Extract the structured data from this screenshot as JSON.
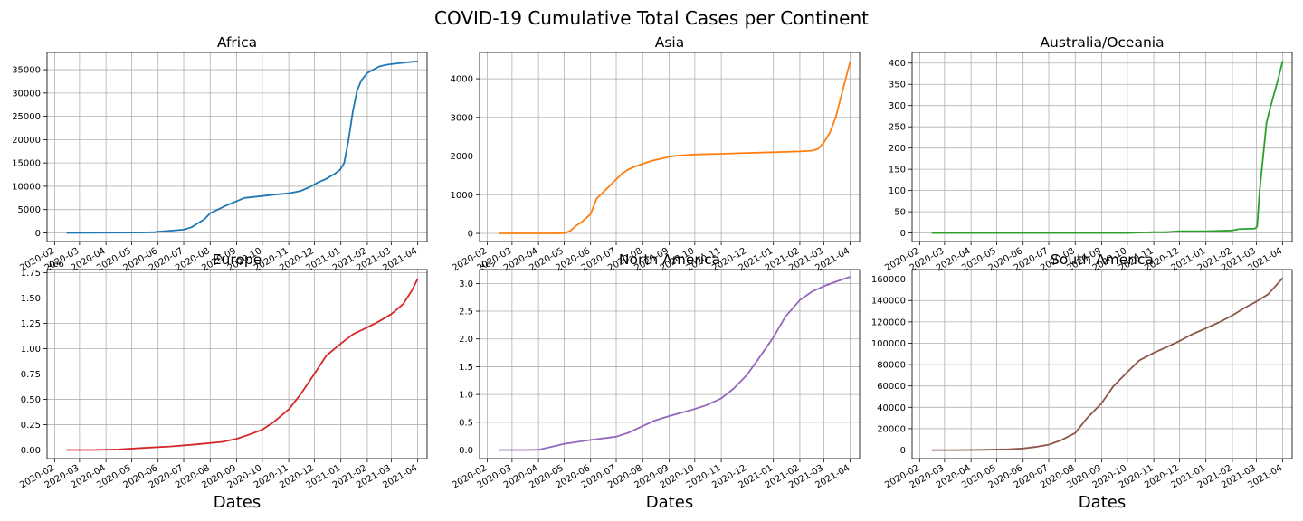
{
  "figure": {
    "suptitle": "COVID-19 Cumulative Total Cases per Continent"
  },
  "chart_data": [
    {
      "type": "line",
      "title": "Africa",
      "xlabel": "",
      "color": "#1f77b4",
      "grid": true,
      "x_ticks": [
        "2020-02",
        "2020-03",
        "2020-04",
        "2020-05",
        "2020-06",
        "2020-07",
        "2020-08",
        "2020-09",
        "2020-10",
        "2020-11",
        "2020-12",
        "2021-01",
        "2021-02",
        "2021-03",
        "2021-04"
      ],
      "ylim": [
        -1850,
        38700
      ],
      "y_ticks": [
        0,
        5000,
        10000,
        15000,
        20000,
        25000,
        30000,
        35000
      ],
      "y_tick_labels": [
        "0",
        "5000",
        "10000",
        "15000",
        "20000",
        "25000",
        "30000",
        "35000"
      ],
      "offset_text": "",
      "x": [
        "2020-02-15",
        "2020-03-15",
        "2020-04-15",
        "2020-05-15",
        "2020-05-28",
        "2020-06-01",
        "2020-06-15",
        "2020-07-01",
        "2020-07-10",
        "2020-07-25",
        "2020-08-01",
        "2020-08-10",
        "2020-08-20",
        "2020-09-01",
        "2020-09-10",
        "2020-09-20",
        "2020-10-01",
        "2020-10-15",
        "2020-11-01",
        "2020-11-15",
        "2020-11-25",
        "2020-12-05",
        "2020-12-15",
        "2020-12-25",
        "2020-12-31",
        "2021-01-05",
        "2021-01-10",
        "2021-01-15",
        "2021-01-20",
        "2021-01-25",
        "2021-02-01",
        "2021-02-08",
        "2021-02-15",
        "2021-02-22",
        "2021-03-01",
        "2021-03-10",
        "2021-03-20",
        "2021-04-01"
      ],
      "values": [
        0,
        20,
        50,
        90,
        150,
        250,
        450,
        700,
        1200,
        2900,
        4200,
        5000,
        5900,
        6800,
        7500,
        7700,
        7900,
        8200,
        8500,
        9000,
        9800,
        10800,
        11600,
        12700,
        13500,
        15000,
        20000,
        26000,
        30500,
        32700,
        34300,
        35000,
        35700,
        36000,
        36200,
        36400,
        36600,
        36800
      ]
    },
    {
      "type": "line",
      "title": "Asia",
      "xlabel": "",
      "color": "#ff7f0e",
      "grid": true,
      "x_ticks": [
        "2020-02",
        "2020-03",
        "2020-04",
        "2020-05",
        "2020-06",
        "2020-07",
        "2020-08",
        "2020-09",
        "2020-10",
        "2020-11",
        "2020-12",
        "2021-01",
        "2021-02",
        "2021-03",
        "2021-04"
      ],
      "ylim": [
        -210,
        4680
      ],
      "y_ticks": [
        0,
        1000,
        2000,
        3000,
        4000
      ],
      "y_tick_labels": [
        "0",
        "1000",
        "2000",
        "3000",
        "4000"
      ],
      "offset_text": "",
      "x": [
        "2020-02-15",
        "2020-03-15",
        "2020-04-15",
        "2020-05-01",
        "2020-05-08",
        "2020-05-15",
        "2020-05-22",
        "2020-06-01",
        "2020-06-08",
        "2020-06-15",
        "2020-06-22",
        "2020-07-01",
        "2020-07-08",
        "2020-07-15",
        "2020-07-22",
        "2020-08-01",
        "2020-08-10",
        "2020-08-20",
        "2020-09-01",
        "2020-09-10",
        "2020-10-01",
        "2020-11-01",
        "2020-12-01",
        "2021-01-01",
        "2021-02-01",
        "2021-02-15",
        "2021-02-22",
        "2021-03-01",
        "2021-03-08",
        "2021-03-15",
        "2021-03-22",
        "2021-04-01"
      ],
      "values": [
        0,
        0,
        0,
        5,
        60,
        200,
        300,
        500,
        900,
        1050,
        1200,
        1400,
        1550,
        1650,
        1720,
        1800,
        1870,
        1920,
        1980,
        2010,
        2040,
        2060,
        2080,
        2100,
        2120,
        2140,
        2180,
        2350,
        2600,
        3000,
        3600,
        4450
      ]
    },
    {
      "type": "line",
      "title": "Australia/Oceania",
      "xlabel": "",
      "color": "#2ca02c",
      "grid": true,
      "x_ticks": [
        "2020-02",
        "2020-03",
        "2020-04",
        "2020-05",
        "2020-06",
        "2020-07",
        "2020-08",
        "2020-09",
        "2020-10",
        "2020-11",
        "2020-12",
        "2021-01",
        "2021-02",
        "2021-03",
        "2021-04"
      ],
      "ylim": [
        -20,
        425
      ],
      "y_ticks": [
        0,
        50,
        100,
        150,
        200,
        250,
        300,
        350,
        400
      ],
      "y_tick_labels": [
        "0",
        "50",
        "100",
        "150",
        "200",
        "250",
        "300",
        "350",
        "400"
      ],
      "offset_text": "",
      "x": [
        "2020-02-15",
        "2020-06-01",
        "2020-10-01",
        "2020-10-15",
        "2020-11-01",
        "2020-11-15",
        "2020-12-01",
        "2021-01-01",
        "2021-01-15",
        "2021-02-01",
        "2021-02-08",
        "2021-02-20",
        "2021-02-27",
        "2021-03-02",
        "2021-03-05",
        "2021-03-09",
        "2021-03-13",
        "2021-03-18",
        "2021-03-25",
        "2021-04-01"
      ],
      "values": [
        0,
        0,
        0,
        1,
        2,
        2,
        4,
        4,
        5,
        6,
        9,
        10,
        10,
        15,
        100,
        180,
        260,
        300,
        350,
        405
      ]
    },
    {
      "type": "line",
      "title": "Europe",
      "xlabel": "",
      "color": "#d62728",
      "grid": true,
      "x_ticks": [
        "2020-02",
        "2020-03",
        "2020-04",
        "2020-05",
        "2020-06",
        "2020-07",
        "2020-08",
        "2020-09",
        "2020-10",
        "2020-11",
        "2020-12",
        "2021-01",
        "2021-02",
        "2021-03",
        "2021-04"
      ],
      "ylim": [
        -0.085,
        1.78
      ],
      "y_ticks": [
        0,
        0.25,
        0.5,
        0.75,
        1.0,
        1.25,
        1.5,
        1.75
      ],
      "y_tick_labels": [
        "0.00",
        "0.25",
        "0.50",
        "0.75",
        "1.00",
        "1.25",
        "1.50",
        "1.75"
      ],
      "offset_text": "1e6",
      "x": [
        "2020-02-15",
        "2020-03-15",
        "2020-04-15",
        "2020-05-15",
        "2020-06-15",
        "2020-07-15",
        "2020-08-15",
        "2020-09-01",
        "2020-09-15",
        "2020-10-01",
        "2020-10-15",
        "2020-11-01",
        "2020-11-15",
        "2020-12-01",
        "2020-12-15",
        "2021-01-01",
        "2021-01-15",
        "2021-02-01",
        "2021-02-15",
        "2021-03-01",
        "2021-03-15",
        "2021-03-25",
        "2021-04-01"
      ],
      "values": [
        0,
        0,
        0.005,
        0.02,
        0.035,
        0.055,
        0.08,
        0.11,
        0.15,
        0.2,
        0.28,
        0.4,
        0.55,
        0.75,
        0.93,
        1.05,
        1.14,
        1.21,
        1.27,
        1.34,
        1.44,
        1.57,
        1.69
      ]
    },
    {
      "type": "line",
      "title": "North America",
      "xlabel": "Dates",
      "color": "#9467bd",
      "grid": true,
      "x_ticks": [
        "2020-02",
        "2020-03",
        "2020-04",
        "2020-05",
        "2020-06",
        "2020-07",
        "2020-08",
        "2020-09",
        "2020-10",
        "2020-11",
        "2020-12",
        "2021-01",
        "2021-02",
        "2021-03",
        "2021-04"
      ],
      "ylim": [
        -1.55,
        32.5
      ],
      "y_ticks": [
        0,
        0.5,
        1.0,
        1.5,
        2.0,
        2.5,
        3.0
      ],
      "y_tick_labels": [
        "0.0",
        "0.5",
        "1.0",
        "1.5",
        "2.0",
        "2.5",
        "3.0"
      ],
      "y_tick_values_scaled": [
        0,
        5,
        10,
        15,
        20,
        25,
        30
      ],
      "offset_text": "1e7",
      "x": [
        "2020-02-15",
        "2020-03-15",
        "2020-04-01",
        "2020-05-01",
        "2020-06-01",
        "2020-07-01",
        "2020-07-15",
        "2020-08-01",
        "2020-08-15",
        "2020-09-01",
        "2020-09-15",
        "2020-10-01",
        "2020-10-15",
        "2020-11-01",
        "2020-11-15",
        "2020-12-01",
        "2020-12-15",
        "2021-01-01",
        "2021-01-15",
        "2021-02-01",
        "2021-02-15",
        "2021-03-01",
        "2021-03-15",
        "2021-04-01"
      ],
      "values": [
        0,
        0,
        0.05,
        1.1,
        1.8,
        2.4,
        3.1,
        4.3,
        5.3,
        6.1,
        6.7,
        7.4,
        8.1,
        9.3,
        11.0,
        13.5,
        16.5,
        20.3,
        24.0,
        27.0,
        28.5,
        29.5,
        30.3,
        31.2
      ]
    },
    {
      "type": "line",
      "title": "South America",
      "xlabel": "Dates",
      "color": "#8c564b",
      "grid": true,
      "x_ticks": [
        "2020-02",
        "2020-03",
        "2020-04",
        "2020-05",
        "2020-06",
        "2020-07",
        "2020-08",
        "2020-09",
        "2020-10",
        "2020-11",
        "2020-12",
        "2021-01",
        "2021-02",
        "2021-03",
        "2021-04"
      ],
      "ylim": [
        -8000,
        169000
      ],
      "y_ticks": [
        0,
        20000,
        40000,
        60000,
        80000,
        100000,
        120000,
        140000,
        160000
      ],
      "y_tick_labels": [
        "0",
        "20000",
        "40000",
        "60000",
        "80000",
        "100000",
        "120000",
        "140000",
        "160000"
      ],
      "offset_text": "",
      "x": [
        "2020-02-15",
        "2020-03-15",
        "2020-04-15",
        "2020-05-15",
        "2020-06-01",
        "2020-06-15",
        "2020-07-01",
        "2020-07-15",
        "2020-08-01",
        "2020-08-15",
        "2020-09-01",
        "2020-09-15",
        "2020-10-01",
        "2020-10-15",
        "2020-11-01",
        "2020-11-15",
        "2020-12-01",
        "2020-12-15",
        "2021-01-01",
        "2021-01-15",
        "2021-02-01",
        "2021-02-15",
        "2021-03-01",
        "2021-03-15",
        "2021-04-01"
      ],
      "values": [
        0,
        0,
        200,
        700,
        1500,
        2800,
        5000,
        9000,
        16000,
        30000,
        44000,
        60000,
        73000,
        84000,
        91000,
        96000,
        102000,
        108000,
        114000,
        119000,
        126000,
        133000,
        139000,
        146000,
        161000
      ]
    }
  ]
}
